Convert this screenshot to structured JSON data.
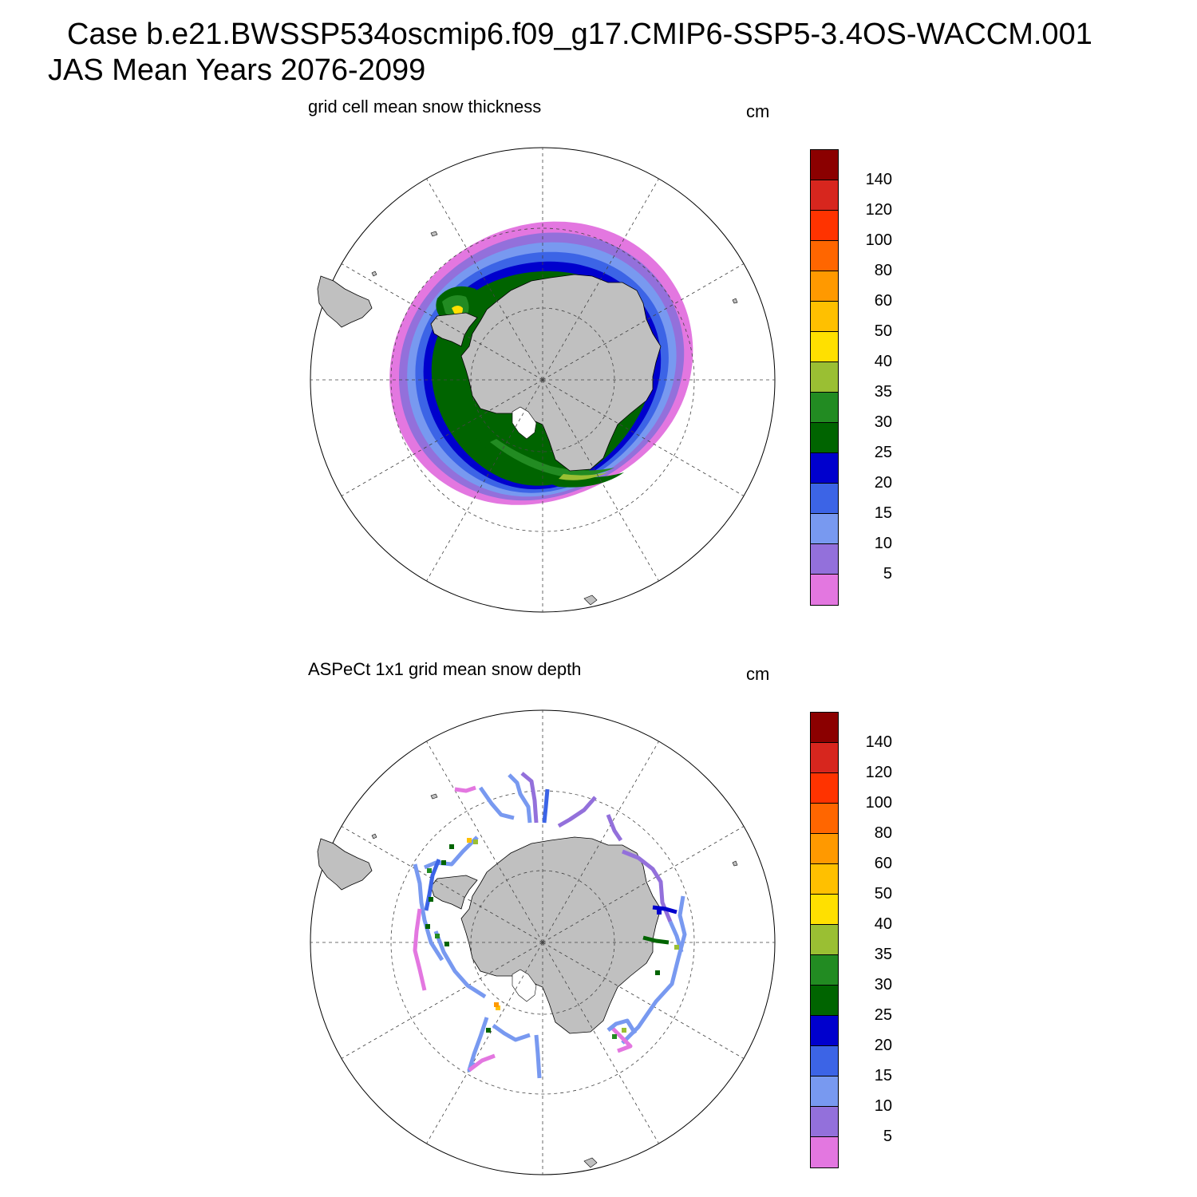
{
  "figure": {
    "title_line1": "Case b.e21.BWSSP534oscmip6.f09_g17.CMIP6-SSP5-3.4OS-WACCM.001",
    "title_line2": "JAS Mean   Years 2076-2099"
  },
  "colorbar": {
    "colors_top_to_bottom": [
      "#8b0000",
      "#d7261e",
      "#ff3300",
      "#ff6600",
      "#ff9900",
      "#ffc000",
      "#ffe000",
      "#9abf33",
      "#228b22",
      "#006400",
      "#0000cd",
      "#3c64e6",
      "#7899f0",
      "#9370db",
      "#e377e0"
    ],
    "labels_top_to_bottom": [
      "140",
      "120",
      "100",
      "80",
      "60",
      "50",
      "40",
      "35",
      "30",
      "25",
      "20",
      "15",
      "10",
      "5"
    ]
  },
  "panels": [
    {
      "title": "grid cell mean snow thickness",
      "units": "cm",
      "projection": "south-polar-stereographic",
      "field_type": "continuous-sea-ice-ring"
    },
    {
      "title": "ASPeCt 1x1 grid mean snow depth",
      "units": "cm",
      "projection": "south-polar-stereographic",
      "field_type": "ship-track-observations"
    }
  ],
  "map_style": {
    "land_color": "#c0c0c0",
    "coast_color": "#000000",
    "grid_color": "#444444"
  }
}
